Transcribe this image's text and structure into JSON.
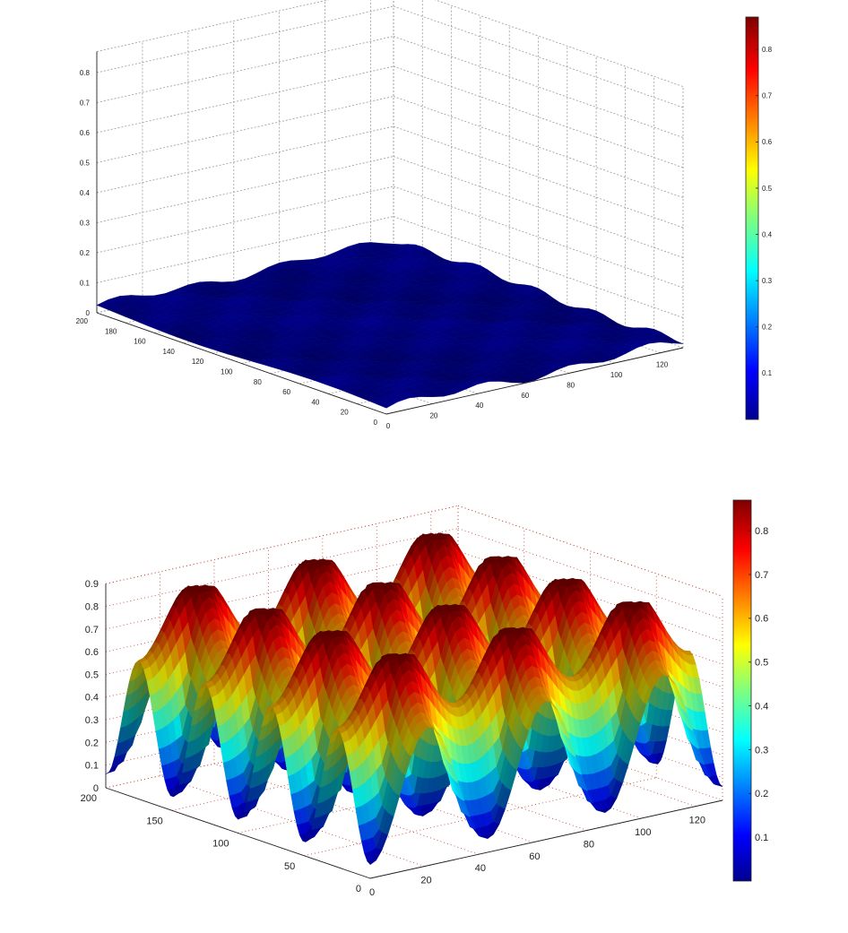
{
  "chart_data": [
    {
      "type": "surface",
      "title": "",
      "xlabel": "",
      "ylabel": "",
      "zlabel": "",
      "grid": true,
      "colormap": "jet",
      "x_ticks": [
        "0",
        "20",
        "40",
        "60",
        "80",
        "100",
        "120"
      ],
      "y_ticks": [
        "0",
        "20",
        "40",
        "60",
        "80",
        "100",
        "120",
        "140",
        "160",
        "180",
        "200"
      ],
      "z_ticks": [
        "0",
        "0.1",
        "0.2",
        "0.3",
        "0.4",
        "0.5",
        "0.6",
        "0.7",
        "0.8"
      ],
      "colorbar_ticks": [
        "0.1",
        "0.2",
        "0.3",
        "0.4",
        "0.5",
        "0.6",
        "0.7",
        "0.8"
      ],
      "xlim": [
        0,
        130
      ],
      "ylim": [
        0,
        200
      ],
      "zlim": [
        0,
        0.87
      ],
      "colorbar_range": [
        0,
        0.87
      ],
      "surface": {
        "description_level": "flat",
        "mean_z": 0.02,
        "max_z": 0.04
      }
    },
    {
      "type": "surface",
      "title": "",
      "xlabel": "",
      "ylabel": "",
      "zlabel": "",
      "grid": true,
      "colormap": "jet",
      "x_ticks": [
        "0",
        "20",
        "40",
        "60",
        "80",
        "100",
        "120"
      ],
      "y_ticks": [
        "0",
        "50",
        "100",
        "150",
        "200"
      ],
      "z_ticks": [
        "0",
        "0.1",
        "0.2",
        "0.3",
        "0.4",
        "0.5",
        "0.6",
        "0.7",
        "0.8",
        "0.9"
      ],
      "colorbar_ticks": [
        "0.1",
        "0.2",
        "0.3",
        "0.4",
        "0.5",
        "0.6",
        "0.7",
        "0.8"
      ],
      "xlim": [
        0,
        130
      ],
      "ylim": [
        0,
        200
      ],
      "zlim": [
        0,
        0.9
      ],
      "colorbar_range": [
        0,
        0.87
      ],
      "surface": {
        "wells_x": 3,
        "wells_y": 4,
        "min_z": 0.0,
        "max_z": 0.87
      }
    }
  ],
  "colors": {
    "grid_top": "#999999",
    "grid_bottom": "#c0392b",
    "axis": "#222222"
  }
}
